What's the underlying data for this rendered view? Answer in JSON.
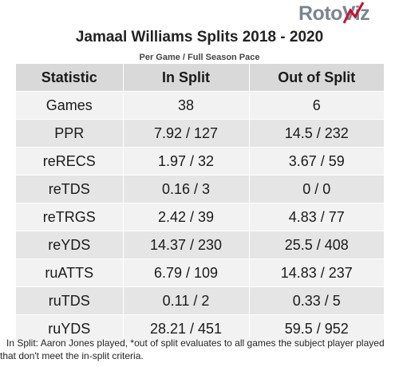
{
  "logo": {
    "part1": "Roto",
    "part2": "Viz",
    "accent_color": "#c8102e"
  },
  "title": "Jamaal Williams Splits 2018 - 2020",
  "subtitle": "Per Game / Full Season Pace",
  "table": {
    "headers": [
      "Statistic",
      "In Split",
      "Out of Split"
    ],
    "rows": [
      [
        "Games",
        "38",
        "6"
      ],
      [
        "PPR",
        "7.92 / 127",
        "14.5 / 232"
      ],
      [
        "reRECS",
        "1.97 / 32",
        "3.67 / 59"
      ],
      [
        "reTDS",
        "0.16 / 3",
        "0 / 0"
      ],
      [
        "reTRGS",
        "2.42 / 39",
        "4.83 / 77"
      ],
      [
        "reYDS",
        "14.37 / 230",
        "25.5 / 408"
      ],
      [
        "ruATTS",
        "6.79 / 109",
        "14.83 / 237"
      ],
      [
        "ruTDS",
        "0.11 / 2",
        "0.33 / 5"
      ],
      [
        "ruYDS",
        "28.21 / 451",
        "59.5 / 952"
      ]
    ]
  },
  "footnote": {
    "line1": "In Split: Aaron Jones played,  *out of split evaluates to all games the subject player played",
    "line2": "that don't meet the in-split criteria."
  }
}
